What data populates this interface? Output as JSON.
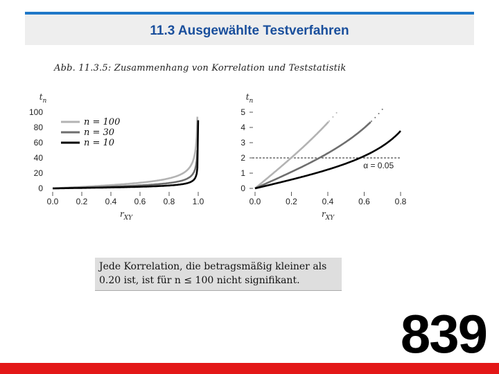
{
  "header": {
    "title": "11.3 Ausgewählte Testverfahren"
  },
  "figure": {
    "caption": "Abb. 11.3.5: Zusammenhang von Korrelation und Teststatistik"
  },
  "note": {
    "line1": "Jede Korrelation, die betragsmäßig kleiner als",
    "line2": "0.20 ist, ist für n ≤ 100 nicht signifikant."
  },
  "page_number": "839",
  "colors": {
    "header_rule": "#1f78c8",
    "title": "#1a4f9c",
    "footer": "#e31717"
  },
  "chart_data": [
    {
      "type": "line",
      "title": "",
      "xlabel": "r_XY",
      "ylabel": "t_n",
      "xlim": [
        0,
        1
      ],
      "ylim": [
        0,
        100
      ],
      "x_ticks": [
        "0.0",
        "0.2",
        "0.4",
        "0.6",
        "0.8",
        "1.0"
      ],
      "y_ticks": [
        "0",
        "20",
        "40",
        "60",
        "80",
        "100"
      ],
      "legend": {
        "placement": "top-left",
        "entries": [
          "n = 100",
          "n = 30",
          "n = 10"
        ]
      },
      "series": [
        {
          "name": "n = 100",
          "color": "#b3b3b3",
          "n": 100
        },
        {
          "name": "n = 30",
          "color": "#6e6e6e",
          "n": 30
        },
        {
          "name": "n = 10",
          "color": "#000000",
          "n": 10
        }
      ]
    },
    {
      "type": "line",
      "title": "",
      "xlabel": "r_XY",
      "ylabel": "t_n",
      "xlim": [
        0,
        0.8
      ],
      "ylim": [
        0,
        5
      ],
      "x_ticks": [
        "0.0",
        "0.2",
        "0.4",
        "0.6",
        "0.8"
      ],
      "y_ticks": [
        "0",
        "1",
        "2",
        "3",
        "4",
        "5"
      ],
      "reference_line": {
        "y": 2,
        "label": "α = 0.05"
      },
      "series": [
        {
          "name": "n = 100",
          "color": "#b3b3b3",
          "n": 100
        },
        {
          "name": "n = 30",
          "color": "#6e6e6e",
          "n": 30
        },
        {
          "name": "n = 10",
          "color": "#000000",
          "n": 10
        }
      ]
    }
  ]
}
